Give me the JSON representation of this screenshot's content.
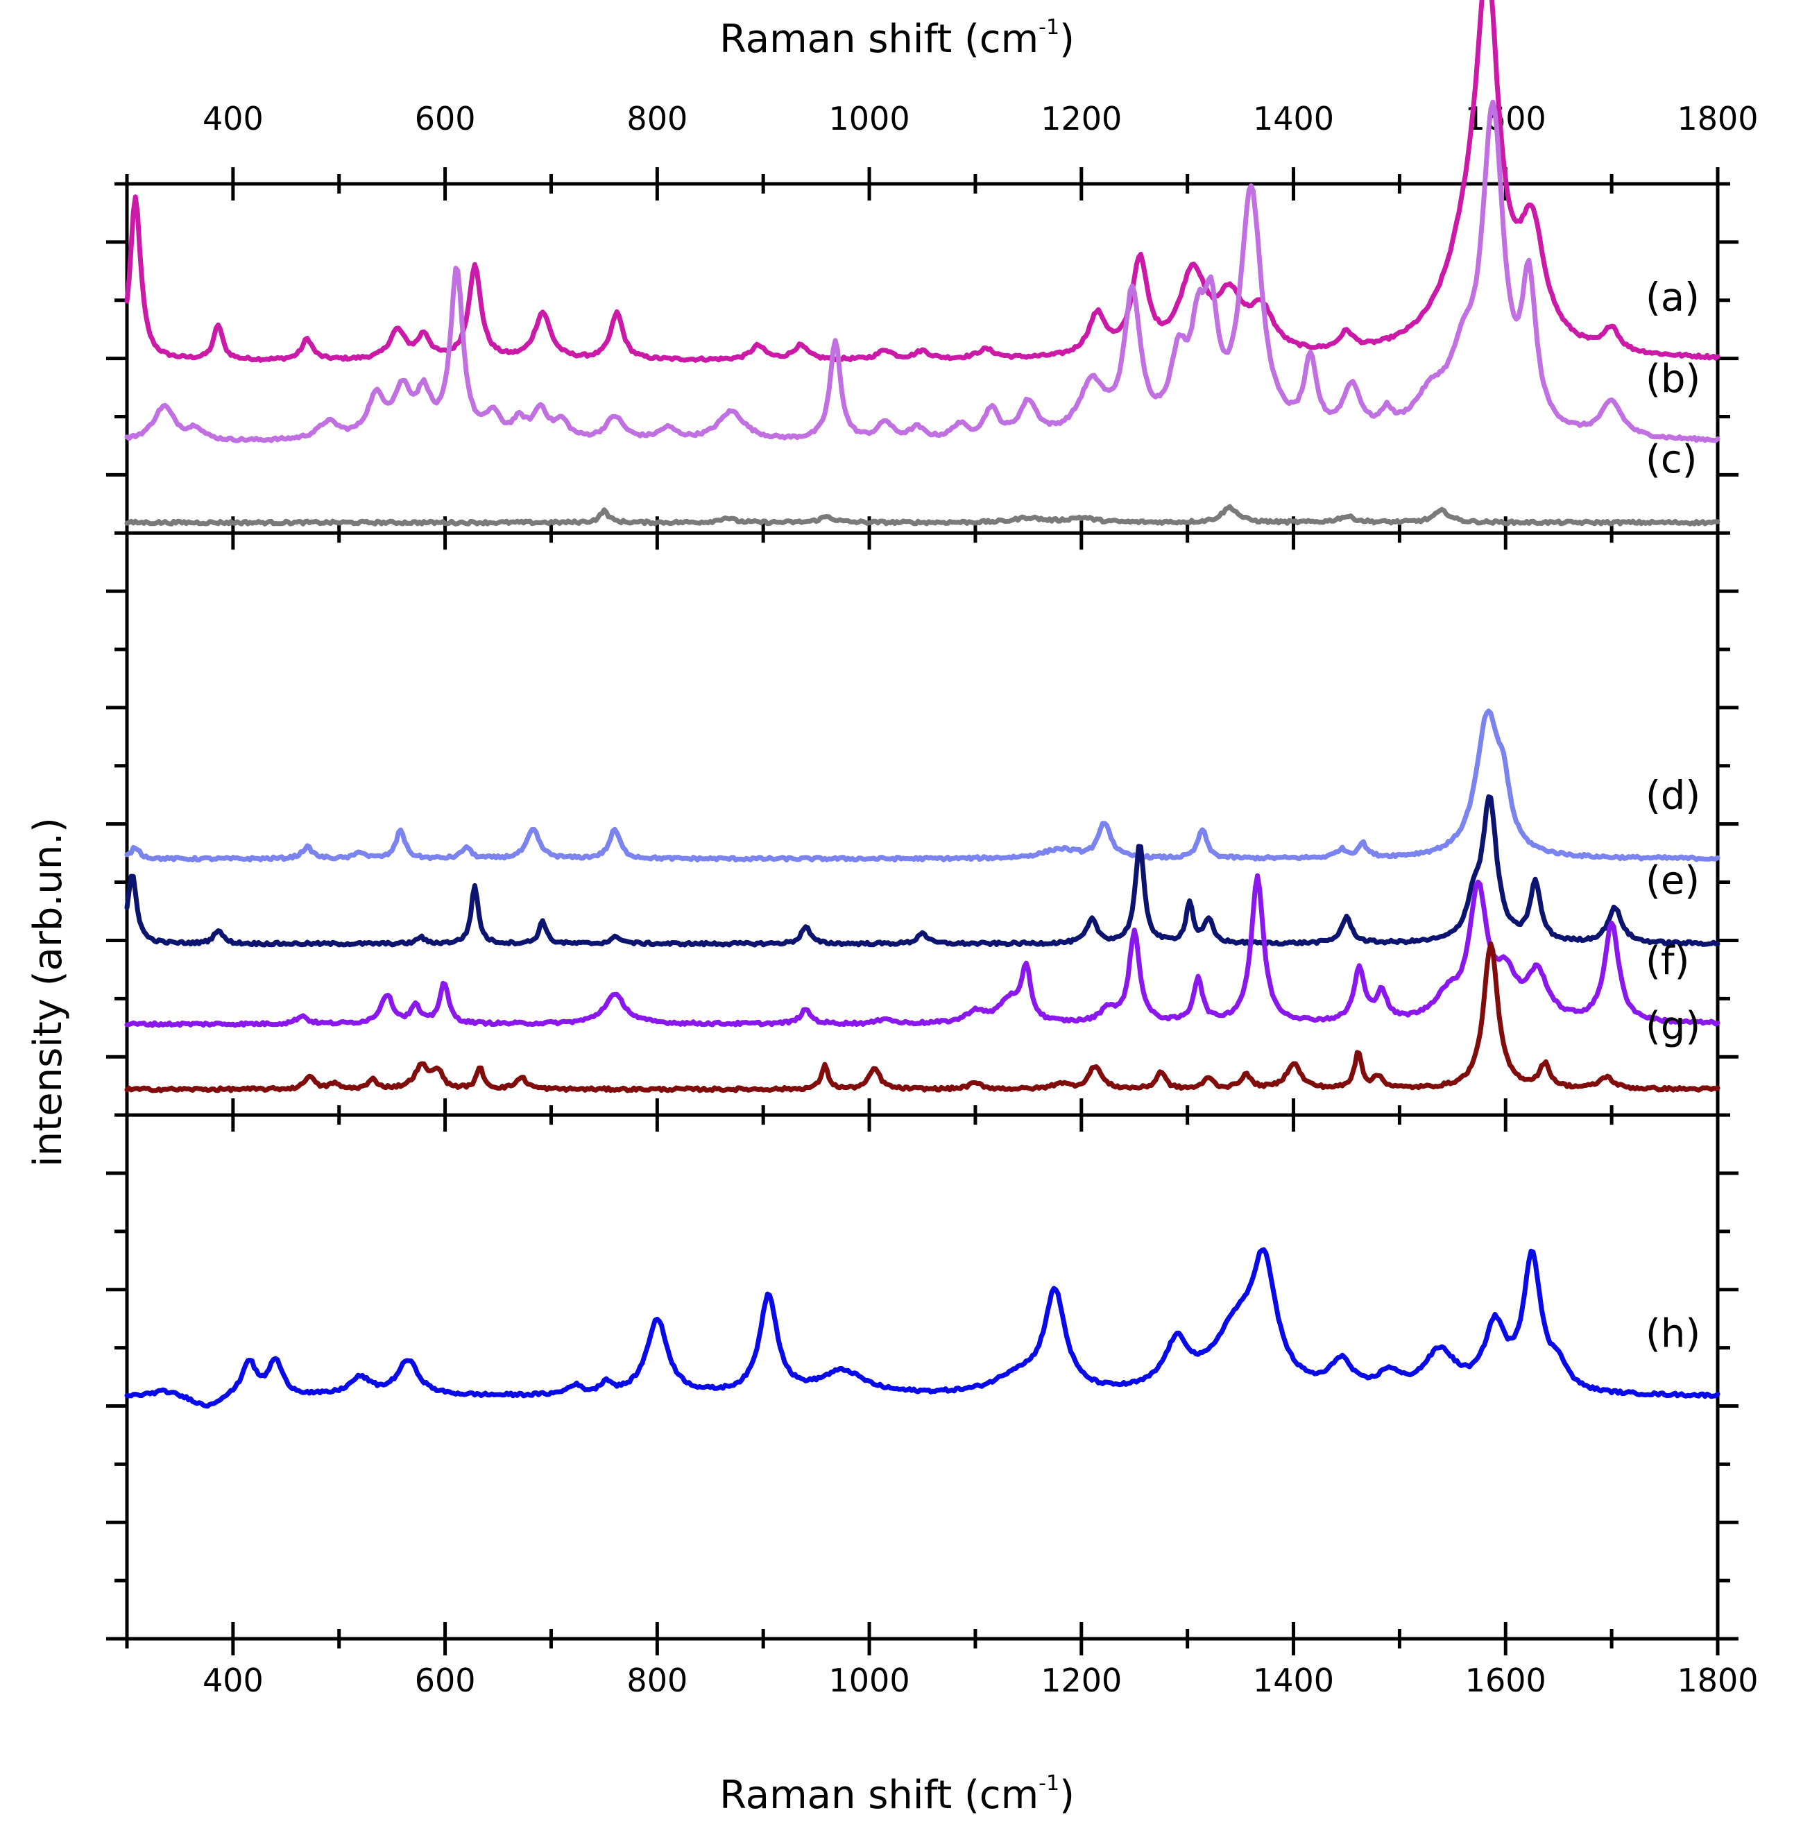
{
  "chart_data": {
    "type": "line",
    "title": "",
    "xlabel_top_base": "Raman shift (cm",
    "xlabel_bottom_base": "Raman shift (cm",
    "xlabel_sup": "-1",
    "xlabel_close": ")",
    "ylabel": "intensity (arb.un.)",
    "xlim": [
      300,
      1800
    ],
    "ylim": [
      0,
      12.5
    ],
    "xticks": [
      400,
      600,
      800,
      1000,
      1200,
      1400,
      1600,
      1800
    ],
    "xtick_labels": [
      "400",
      "600",
      "800",
      "1000",
      "1200",
      "1400",
      "1600",
      "1800"
    ],
    "panel_dividers_y": [
      4.5,
      9.5
    ],
    "grid": false,
    "series": [
      {
        "name": "a",
        "label": "(a)",
        "color": "#cc1aa8",
        "baseline": 10.98,
        "peaks": [
          [
            308,
            1.4,
            6
          ],
          [
            386,
            0.3,
            5
          ],
          [
            470,
            0.18,
            6
          ],
          [
            555,
            0.25,
            9
          ],
          [
            580,
            0.2,
            7
          ],
          [
            628,
            0.8,
            7
          ],
          [
            692,
            0.4,
            9
          ],
          [
            762,
            0.4,
            7
          ],
          [
            895,
            0.12,
            8
          ],
          [
            935,
            0.12,
            8
          ],
          [
            1015,
            0.08,
            8
          ],
          [
            1050,
            0.07,
            8
          ],
          [
            1110,
            0.08,
            10
          ],
          [
            1215,
            0.35,
            10
          ],
          [
            1255,
            0.8,
            9
          ],
          [
            1305,
            0.7,
            15
          ],
          [
            1340,
            0.45,
            15
          ],
          [
            1370,
            0.35,
            14
          ],
          [
            1450,
            0.15,
            8
          ],
          [
            1570,
            1.0,
            30
          ],
          [
            1583,
            2.5,
            12
          ],
          [
            1625,
            0.9,
            14
          ],
          [
            1700,
            0.2,
            8
          ]
        ]
      },
      {
        "name": "b",
        "label": "(b)",
        "color": "#c070e0",
        "baseline": 10.28,
        "peaks": [
          [
            335,
            0.3,
            12
          ],
          [
            365,
            0.1,
            8
          ],
          [
            490,
            0.15,
            12
          ],
          [
            535,
            0.35,
            10
          ],
          [
            560,
            0.4,
            10
          ],
          [
            580,
            0.35,
            8
          ],
          [
            611,
            1.45,
            7
          ],
          [
            645,
            0.2,
            8
          ],
          [
            670,
            0.15,
            8
          ],
          [
            690,
            0.25,
            8
          ],
          [
            710,
            0.15,
            8
          ],
          [
            760,
            0.2,
            10
          ],
          [
            810,
            0.1,
            10
          ],
          [
            870,
            0.25,
            15
          ],
          [
            968,
            0.85,
            6
          ],
          [
            1015,
            0.15,
            8
          ],
          [
            1045,
            0.1,
            8
          ],
          [
            1085,
            0.12,
            8
          ],
          [
            1115,
            0.25,
            8
          ],
          [
            1150,
            0.3,
            10
          ],
          [
            1210,
            0.45,
            15
          ],
          [
            1248,
            1.2,
            9
          ],
          [
            1292,
            0.6,
            10
          ],
          [
            1310,
            0.7,
            8
          ],
          [
            1322,
            0.9,
            8
          ],
          [
            1360,
            2.1,
            12
          ],
          [
            1416,
            0.6,
            7
          ],
          [
            1455,
            0.4,
            10
          ],
          [
            1488,
            0.15,
            6
          ],
          [
            1530,
            0.3,
            20
          ],
          [
            1560,
            0.5,
            15
          ],
          [
            1588,
            2.7,
            12
          ],
          [
            1622,
            1.2,
            8
          ],
          [
            1700,
            0.3,
            12
          ]
        ]
      },
      {
        "name": "c",
        "label": "(c)",
        "color": "#7a7a7a",
        "baseline": 9.59,
        "peaks": [
          [
            750,
            0.1,
            5
          ],
          [
            865,
            0.04,
            8
          ],
          [
            960,
            0.05,
            8
          ],
          [
            1150,
            0.04,
            15
          ],
          [
            1200,
            0.04,
            15
          ],
          [
            1340,
            0.13,
            9
          ],
          [
            1450,
            0.05,
            10
          ],
          [
            1540,
            0.1,
            9
          ]
        ]
      },
      {
        "name": "d",
        "label": "(d)",
        "color": "#7b83ee",
        "baseline": 6.7,
        "peaks": [
          [
            308,
            0.1,
            5
          ],
          [
            470,
            0.1,
            6
          ],
          [
            520,
            0.06,
            5
          ],
          [
            558,
            0.25,
            5
          ],
          [
            620,
            0.1,
            5
          ],
          [
            683,
            0.25,
            7
          ],
          [
            760,
            0.25,
            6
          ],
          [
            1180,
            0.08,
            20
          ],
          [
            1222,
            0.3,
            7
          ],
          [
            1314,
            0.25,
            5
          ],
          [
            1445,
            0.07,
            6
          ],
          [
            1465,
            0.12,
            5
          ],
          [
            1583,
            1.2,
            13
          ],
          [
            1598,
            0.4,
            7
          ]
        ]
      },
      {
        "name": "e",
        "label": "(e)",
        "color": "#0c1470",
        "baseline": 5.97,
        "peaks": [
          [
            305,
            0.6,
            5
          ],
          [
            386,
            0.12,
            5
          ],
          [
            577,
            0.06,
            4
          ],
          [
            628,
            0.5,
            4
          ],
          [
            692,
            0.2,
            4
          ],
          [
            762,
            0.06,
            6
          ],
          [
            940,
            0.15,
            5
          ],
          [
            1050,
            0.1,
            5
          ],
          [
            1210,
            0.2,
            6
          ],
          [
            1255,
            0.85,
            5
          ],
          [
            1302,
            0.35,
            4
          ],
          [
            1320,
            0.2,
            5
          ],
          [
            1450,
            0.22,
            6
          ],
          [
            1585,
            1.2,
            8
          ],
          [
            1570,
            0.3,
            8
          ],
          [
            1628,
            0.5,
            6
          ],
          [
            1703,
            0.3,
            8
          ]
        ]
      },
      {
        "name": "f",
        "label": "(f)",
        "color": "#8a18ec",
        "baseline": 5.28,
        "peaks": [
          [
            465,
            0.07,
            6
          ],
          [
            545,
            0.25,
            7
          ],
          [
            572,
            0.15,
            5
          ],
          [
            599,
            0.35,
            5
          ],
          [
            760,
            0.25,
            12
          ],
          [
            940,
            0.12,
            6
          ],
          [
            1015,
            0.05,
            6
          ],
          [
            1100,
            0.1,
            10
          ],
          [
            1132,
            0.2,
            12
          ],
          [
            1148,
            0.45,
            5
          ],
          [
            1225,
            0.12,
            8
          ],
          [
            1250,
            0.78,
            6
          ],
          [
            1310,
            0.38,
            5
          ],
          [
            1366,
            1.25,
            7
          ],
          [
            1462,
            0.45,
            6
          ],
          [
            1483,
            0.25,
            6
          ],
          [
            1545,
            0.2,
            15
          ],
          [
            1574,
            1.1,
            10
          ],
          [
            1600,
            0.35,
            12
          ],
          [
            1630,
            0.4,
            12
          ],
          [
            1700,
            0.85,
            8
          ]
        ]
      },
      {
        "name": "g",
        "label": "(g)",
        "color": "#800c0c",
        "baseline": 4.72,
        "peaks": [
          [
            472,
            0.12,
            5
          ],
          [
            495,
            0.05,
            5
          ],
          [
            532,
            0.08,
            5
          ],
          [
            578,
            0.2,
            8
          ],
          [
            593,
            0.15,
            5
          ],
          [
            633,
            0.18,
            4
          ],
          [
            672,
            0.1,
            6
          ],
          [
            958,
            0.2,
            4
          ],
          [
            1005,
            0.18,
            6
          ],
          [
            1100,
            0.05,
            8
          ],
          [
            1180,
            0.05,
            8
          ],
          [
            1213,
            0.2,
            7
          ],
          [
            1275,
            0.15,
            5
          ],
          [
            1320,
            0.1,
            5
          ],
          [
            1355,
            0.12,
            6
          ],
          [
            1400,
            0.22,
            8
          ],
          [
            1461,
            0.32,
            4
          ],
          [
            1480,
            0.1,
            6
          ],
          [
            1586,
            1.25,
            8
          ],
          [
            1637,
            0.2,
            6
          ],
          [
            1695,
            0.1,
            8
          ]
        ]
      },
      {
        "name": "h",
        "label": "(h)",
        "color": "#0a0ae8",
        "baseline": 2.08,
        "peaks": [
          [
            335,
            0.05,
            15
          ],
          [
            375,
            -0.1,
            15
          ],
          [
            415,
            0.3,
            8
          ],
          [
            440,
            0.3,
            8
          ],
          [
            520,
            0.15,
            12
          ],
          [
            565,
            0.3,
            12
          ],
          [
            722,
            0.08,
            8
          ],
          [
            752,
            0.1,
            6
          ],
          [
            800,
            0.65,
            12
          ],
          [
            905,
            0.85,
            10
          ],
          [
            975,
            0.2,
            25
          ],
          [
            1140,
            0.15,
            25
          ],
          [
            1175,
            0.85,
            12
          ],
          [
            1290,
            0.4,
            14
          ],
          [
            1345,
            0.5,
            25
          ],
          [
            1372,
            1.0,
            14
          ],
          [
            1445,
            0.25,
            12
          ],
          [
            1490,
            0.15,
            12
          ],
          [
            1538,
            0.35,
            18
          ],
          [
            1590,
            0.55,
            12
          ],
          [
            1625,
            1.15,
            10
          ],
          [
            1650,
            0.2,
            10
          ]
        ]
      }
    ]
  }
}
